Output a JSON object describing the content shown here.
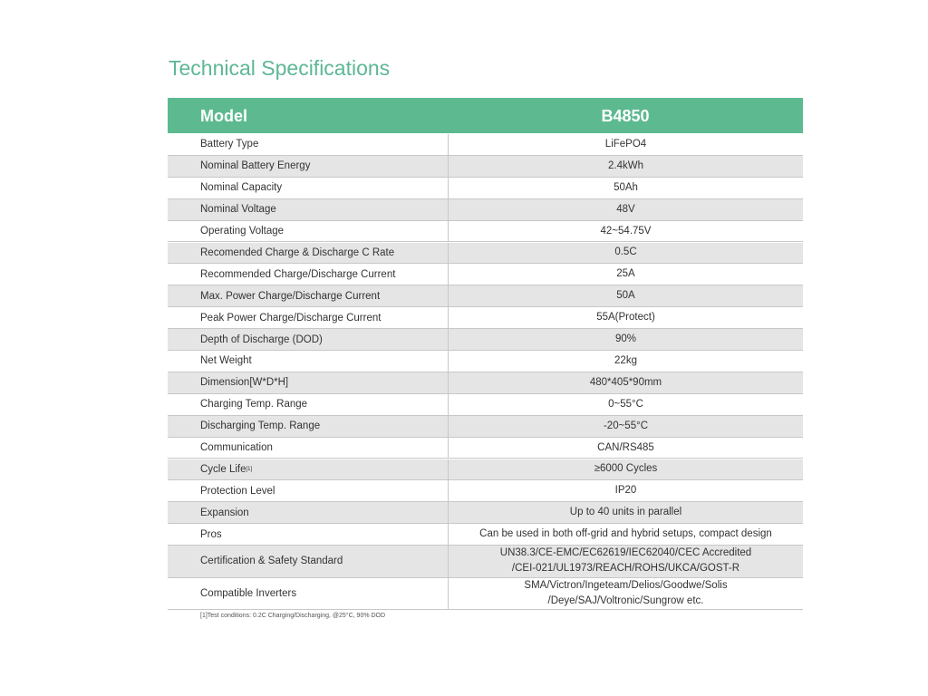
{
  "title": "Technical Specifications",
  "table": {
    "header": [
      "Model",
      "B4850"
    ],
    "rows": [
      {
        "label": "Battery Type",
        "value": [
          "LiFePO4"
        ]
      },
      {
        "label": "Nominal Battery Energy",
        "value": [
          "2.4kWh"
        ]
      },
      {
        "label": "Nominal Capacity",
        "value": [
          "50Ah"
        ]
      },
      {
        "label": "Nominal Voltage",
        "value": [
          "48V"
        ]
      },
      {
        "label": "Operating Voltage",
        "value": [
          "42~54.75V"
        ]
      },
      {
        "label": "Recomended Charge & Discharge C Rate",
        "value": [
          "0.5C"
        ]
      },
      {
        "label": "Recommended Charge/Discharge Current",
        "value": [
          "25A"
        ]
      },
      {
        "label": "Max. Power Charge/Discharge Current",
        "value": [
          "50A"
        ]
      },
      {
        "label": "Peak Power Charge/Discharge Current",
        "value": [
          "55A(Protect)"
        ]
      },
      {
        "label": "Depth of Discharge (DOD)",
        "value": [
          "90%"
        ]
      },
      {
        "label": "Net Weight",
        "value": [
          "22kg"
        ]
      },
      {
        "label": "Dimension[W*D*H]",
        "value": [
          "480*405*90mm"
        ]
      },
      {
        "label": "Charging Temp. Range",
        "value": [
          "0~55°C"
        ]
      },
      {
        "label": "Discharging Temp. Range",
        "value": [
          "-20~55°C"
        ]
      },
      {
        "label": "Communication",
        "value": [
          "CAN/RS485"
        ]
      },
      {
        "label": "Cycle Life",
        "sup": "[1]",
        "value": [
          "≥6000 Cycles"
        ]
      },
      {
        "label": "Protection Level",
        "value": [
          "IP20"
        ]
      },
      {
        "label": "Expansion",
        "value": [
          "Up to 40 units in parallel"
        ]
      },
      {
        "label": "Pros",
        "value": [
          "Can be used in both off-grid and hybrid setups, compact design"
        ]
      },
      {
        "label": "Certification & Safety Standard",
        "value": [
          "UN38.3/CE-EMC/EC62619/IEC62040/CEC Accredited",
          "/CEI-021/UL1973/REACH/ROHS/UKCA/GOST-R"
        ]
      },
      {
        "label": "Compatible Inverters",
        "value": [
          "SMA/Victron/Ingeteam/Delios/Goodwe/Solis",
          "/Deye/SAJ/Voltronic/Sungrow etc."
        ]
      }
    ]
  },
  "footnote": "[1]Test conditions: 0.2C Charging/Discharging, @25°C, 90% DOD"
}
